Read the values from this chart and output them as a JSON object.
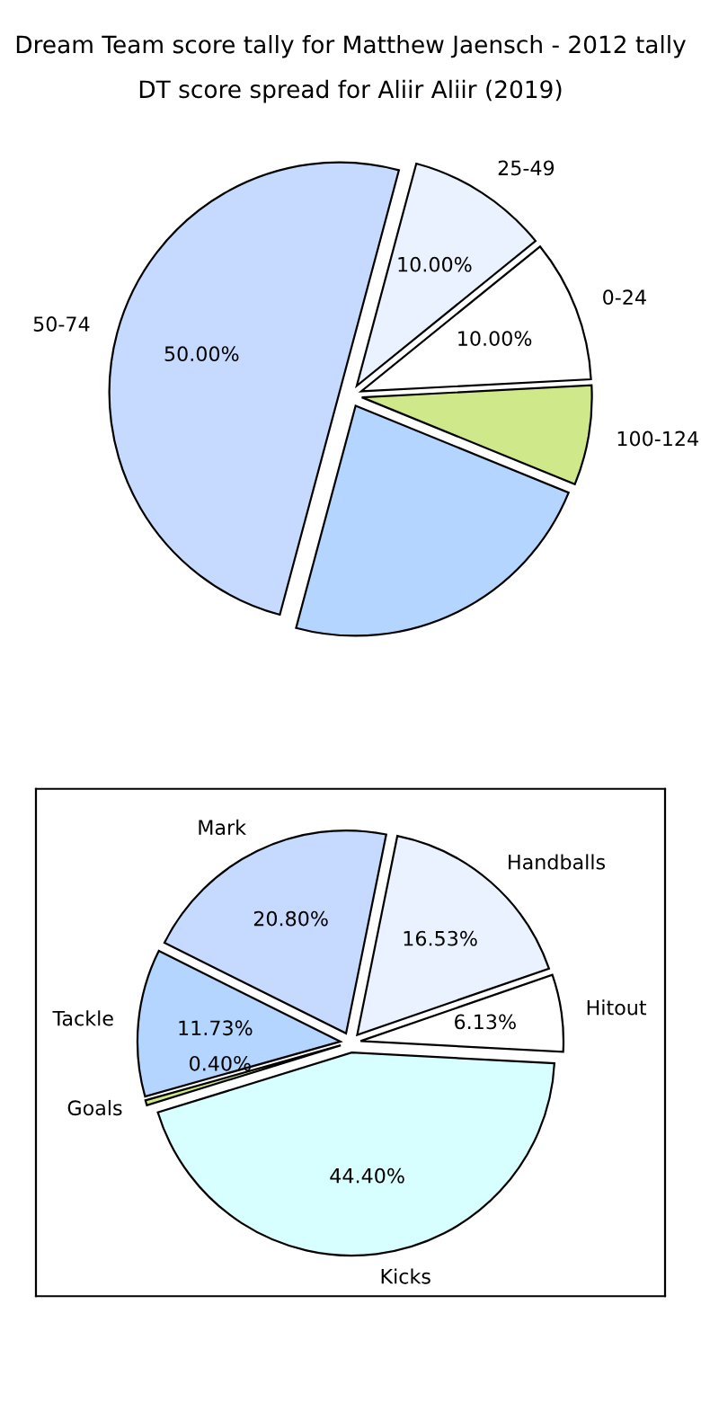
{
  "chart_data": [
    {
      "type": "pie",
      "title": "Dream Team score tally for Matthew Jaensch - 2012 tally",
      "subtitle": "DT score spread for Aliir Aliir (2019)",
      "categories": [
        "0-24",
        "25-49",
        "50-74",
        null,
        "100-124"
      ],
      "values": [
        10,
        10,
        50,
        23,
        7
      ],
      "colors": [
        "#ffffff",
        "#ebf2ff",
        "#c6d9ff",
        "#b3d5ff",
        "#cfe98a"
      ],
      "value_labels": [
        "10.00%",
        "10.00%",
        "50.00%",
        null,
        null
      ]
    },
    {
      "type": "pie",
      "categories": [
        "Hitout",
        "Handballs",
        "Mark",
        "Tackle",
        "Goals",
        "Kicks"
      ],
      "values": [
        6.13,
        16.53,
        20.8,
        11.73,
        0.4,
        44.4
      ],
      "colors": [
        "#ffffff",
        "#ebf2ff",
        "#c6d9ff",
        "#b3d5ff",
        "#cfe98a",
        "#d8ffff"
      ],
      "value_labels": [
        "6.13%",
        "16.53%",
        "20.80%",
        "11.73%",
        "0.40%",
        "44.40%"
      ]
    }
  ]
}
